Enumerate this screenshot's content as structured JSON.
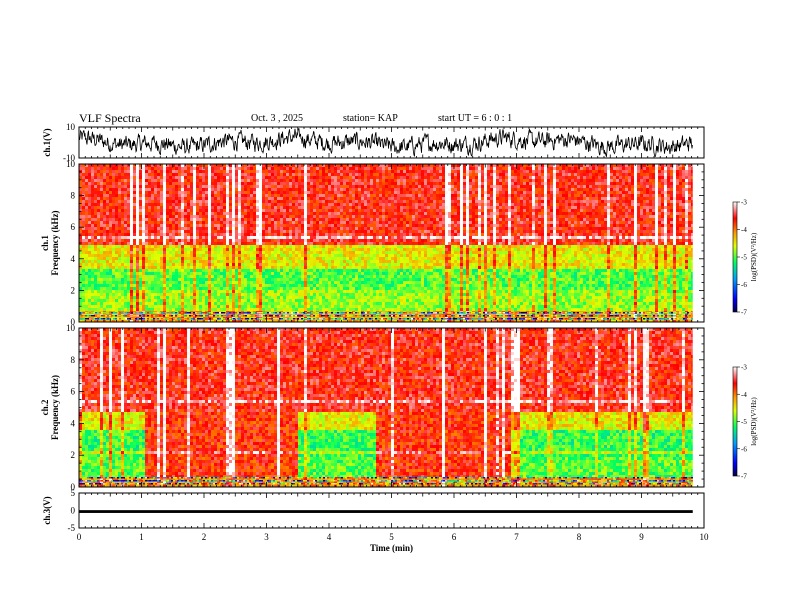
{
  "header": {
    "title": "VLF Spectra",
    "date": "Oct. 3 , 2025",
    "station": "station= KAP",
    "start_ut": "start UT =  6 : 0 : 1"
  },
  "chart_data": [
    {
      "type": "line",
      "name": "ch1-waveform",
      "ylabel": "ch.1(V)",
      "ylim": [
        -10,
        10
      ],
      "yticks": [
        "10",
        "-10"
      ],
      "xlim": [
        0,
        10
      ],
      "duration_min": 9.82,
      "description_of_series": "noisy broadband waveform, amplitude mostly between -7 V and +7 V"
    },
    {
      "type": "heatmap",
      "name": "ch1-spectrogram",
      "ylabel_line1": "ch.1",
      "ylabel_line2": "Frequency (kHz)",
      "ylim": [
        0,
        10
      ],
      "yticks": [
        "0",
        "2",
        "4",
        "6",
        "8",
        "10"
      ],
      "xlim": [
        0,
        10
      ],
      "duration_min": 9.82,
      "colorbar": {
        "label": "log(PSD)(V²/Hz)",
        "range": [
          -7,
          -3
        ],
        "ticks": [
          "-3",
          "-4",
          "-5",
          "-6",
          "-7"
        ]
      },
      "bands": [
        {
          "from_khz": 0.0,
          "to_khz": 0.8,
          "log_psd": -4.2
        },
        {
          "from_khz": 0.8,
          "to_khz": 2.2,
          "log_psd": -4.8
        },
        {
          "from_khz": 2.2,
          "to_khz": 3.4,
          "log_psd": -5.0
        },
        {
          "from_khz": 3.4,
          "to_khz": 4.9,
          "log_psd": -4.5
        },
        {
          "from_khz": 4.9,
          "to_khz": 10.0,
          "log_psd": -3.6
        }
      ]
    },
    {
      "type": "heatmap",
      "name": "ch2-spectrogram",
      "ylabel_line1": "ch.2",
      "ylabel_line2": "Frequency (kHz)",
      "ylim": [
        0,
        10
      ],
      "yticks": [
        "0",
        "2",
        "4",
        "6",
        "8",
        "10"
      ],
      "xlim": [
        0,
        10
      ],
      "duration_min": 9.82,
      "colorbar": {
        "label": "log(PSD)(V²/Hz)",
        "range": [
          -7,
          -3
        ],
        "ticks": [
          "-3",
          "-4",
          "-5",
          "-6",
          "-7"
        ]
      },
      "bands": [
        {
          "from_khz": 0.0,
          "to_khz": 0.6,
          "log_psd": -4.1
        },
        {
          "from_khz": 0.6,
          "to_khz": 2.0,
          "log_psd": -5.0
        },
        {
          "from_khz": 2.0,
          "to_khz": 3.6,
          "log_psd": -5.1
        },
        {
          "from_khz": 3.6,
          "to_khz": 4.8,
          "log_psd": -4.5
        },
        {
          "from_khz": 4.8,
          "to_khz": 10.0,
          "log_psd": -3.6
        }
      ],
      "interference_intervals_min": [
        [
          1.03,
          3.48
        ],
        [
          4.75,
          6.88
        ]
      ],
      "interference_log_psd": -3.7
    },
    {
      "type": "line",
      "name": "ch3-waveform",
      "ylabel": "ch.3(V)",
      "ylim": [
        -5,
        5
      ],
      "yticks": [
        "5",
        "0",
        "-5"
      ],
      "xlim": [
        0,
        10
      ],
      "duration_min": 9.82,
      "band_center_v": -0.3,
      "band_halfwidth_v": 0.4,
      "xlabel": "Time (min)",
      "xticks": [
        "0",
        "1",
        "2",
        "3",
        "4",
        "5",
        "6",
        "7",
        "8",
        "9",
        "10"
      ]
    }
  ]
}
